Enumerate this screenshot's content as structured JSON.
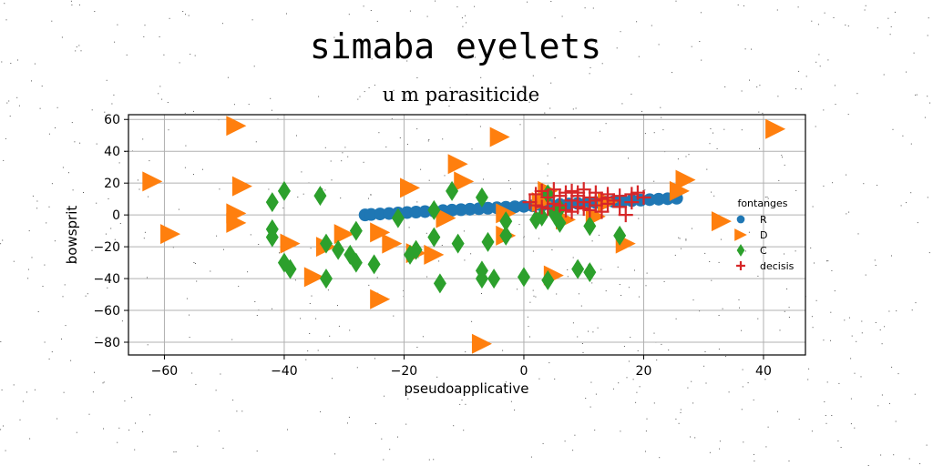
{
  "chart_data": {
    "type": "scatter",
    "title": "simaba eyelets",
    "subtitle": "u m parasiticide",
    "xlabel": "pseudoapplicative",
    "ylabel": "bowsprit",
    "xlim": [
      -66,
      47
    ],
    "ylim": [
      -88,
      63
    ],
    "xticks": [
      -60,
      -40,
      -20,
      0,
      20,
      40
    ],
    "yticks": [
      -80,
      -60,
      -40,
      -20,
      0,
      20,
      40,
      60
    ],
    "grid": true,
    "legend": {
      "title": "fontanges",
      "placement": "center-right"
    },
    "series": [
      {
        "name": "R",
        "marker": "circle",
        "color": "#1f77b4",
        "points": [
          [
            -26.5,
            0.0
          ],
          [
            -25.5,
            0.3
          ],
          [
            -24,
            0.6
          ],
          [
            -22.5,
            0.9
          ],
          [
            -21,
            1.2
          ],
          [
            -19.5,
            1.5
          ],
          [
            -18,
            1.8
          ],
          [
            -16.5,
            2.1
          ],
          [
            -15,
            2.4
          ],
          [
            -13.5,
            2.7
          ],
          [
            -12,
            3.0
          ],
          [
            -10.5,
            3.3
          ],
          [
            -9,
            3.6
          ],
          [
            -7.5,
            3.9
          ],
          [
            -6,
            4.2
          ],
          [
            -4.5,
            4.5
          ],
          [
            -3,
            4.8
          ],
          [
            -1.5,
            5.1
          ],
          [
            0,
            5.4
          ],
          [
            1.5,
            5.7
          ],
          [
            3,
            6.0
          ],
          [
            4.5,
            6.3
          ],
          [
            6,
            6.6
          ],
          [
            7.5,
            6.9
          ],
          [
            9,
            7.2
          ],
          [
            10.5,
            7.5
          ],
          [
            12,
            7.8
          ],
          [
            13.5,
            8.1
          ],
          [
            15,
            8.4
          ],
          [
            16.5,
            8.7
          ],
          [
            18,
            9.0
          ],
          [
            19.5,
            9.3
          ],
          [
            21,
            9.6
          ],
          [
            22.5,
            9.9
          ],
          [
            24,
            10.2
          ],
          [
            25.5,
            10.5
          ]
        ]
      },
      {
        "name": "D",
        "marker": "triangle-right",
        "color": "#ff7f0e",
        "points": [
          [
            42,
            54
          ],
          [
            -48,
            56
          ],
          [
            -4,
            49
          ],
          [
            -11,
            32
          ],
          [
            -62,
            21
          ],
          [
            -10,
            21
          ],
          [
            -47,
            18
          ],
          [
            -19,
            17
          ],
          [
            27,
            22
          ],
          [
            26,
            15
          ],
          [
            -48,
            1
          ],
          [
            -48,
            -5
          ],
          [
            -59,
            -12
          ],
          [
            -39,
            -18
          ],
          [
            -33,
            -20
          ],
          [
            -30,
            -12
          ],
          [
            -22,
            -18
          ],
          [
            -15,
            -25
          ],
          [
            -18,
            -24
          ],
          [
            -24,
            -11
          ],
          [
            -3,
            1
          ],
          [
            -13,
            -2
          ],
          [
            -3,
            -13
          ],
          [
            17,
            -18
          ],
          [
            33,
            -4
          ],
          [
            -35,
            -39
          ],
          [
            -24,
            -53
          ],
          [
            5,
            -38
          ],
          [
            -7,
            -81
          ],
          [
            7,
            -3
          ],
          [
            12,
            -1
          ],
          [
            14,
            8
          ],
          [
            4,
            15
          ],
          [
            3,
            8
          ]
        ]
      },
      {
        "name": "C",
        "marker": "thin-diamond",
        "color": "#2ca02c",
        "points": [
          [
            -42,
            8
          ],
          [
            -40,
            15
          ],
          [
            -34,
            12
          ],
          [
            -42,
            -9
          ],
          [
            -42,
            -14
          ],
          [
            -40,
            -30
          ],
          [
            -39,
            -34
          ],
          [
            -31,
            -22
          ],
          [
            -33,
            -18
          ],
          [
            -28,
            -10
          ],
          [
            -29,
            -25
          ],
          [
            -28,
            -30
          ],
          [
            -25,
            -31
          ],
          [
            -33,
            -40
          ],
          [
            -19,
            -25
          ],
          [
            -18,
            -22
          ],
          [
            -15,
            -14
          ],
          [
            -11,
            -18
          ],
          [
            -14,
            -43
          ],
          [
            -21,
            -2
          ],
          [
            -12,
            15
          ],
          [
            -7,
            11
          ],
          [
            -3,
            -4
          ],
          [
            -6,
            -17
          ],
          [
            -3,
            -13
          ],
          [
            -7,
            -35
          ],
          [
            -7,
            -40
          ],
          [
            -5,
            -40
          ],
          [
            0,
            -39
          ],
          [
            4,
            -41
          ],
          [
            6,
            -5
          ],
          [
            9,
            -34
          ],
          [
            11,
            -36
          ],
          [
            11,
            -7
          ],
          [
            16,
            -13
          ],
          [
            2,
            -3
          ],
          [
            3,
            -1
          ],
          [
            5,
            1
          ],
          [
            -15,
            3
          ],
          [
            4,
            13
          ],
          [
            6,
            4
          ]
        ]
      },
      {
        "name": "decisis",
        "marker": "plus",
        "color": "#d62728",
        "points": [
          [
            1,
            8
          ],
          [
            2,
            13
          ],
          [
            3,
            15
          ],
          [
            3,
            5
          ],
          [
            4,
            11
          ],
          [
            5,
            16
          ],
          [
            5,
            7
          ],
          [
            6,
            12
          ],
          [
            7,
            3
          ],
          [
            7,
            14
          ],
          [
            8,
            9
          ],
          [
            8,
            15
          ],
          [
            9,
            5
          ],
          [
            9,
            12
          ],
          [
            10,
            16
          ],
          [
            10,
            8
          ],
          [
            11,
            11
          ],
          [
            11,
            3
          ],
          [
            12,
            14
          ],
          [
            12,
            6
          ],
          [
            13,
            10
          ],
          [
            13,
            2
          ],
          [
            14,
            13
          ],
          [
            14,
            7
          ],
          [
            15,
            9
          ],
          [
            16,
            5
          ],
          [
            16,
            12
          ],
          [
            17,
            0
          ],
          [
            18,
            13
          ],
          [
            18,
            8
          ],
          [
            19,
            14
          ],
          [
            20,
            11
          ],
          [
            6,
            6
          ],
          [
            8,
            2
          ],
          [
            4,
            4
          ],
          [
            2,
            6
          ],
          [
            10,
            4
          ],
          [
            12,
            9
          ],
          [
            14,
            11
          ],
          [
            9,
            14
          ]
        ]
      }
    ]
  }
}
